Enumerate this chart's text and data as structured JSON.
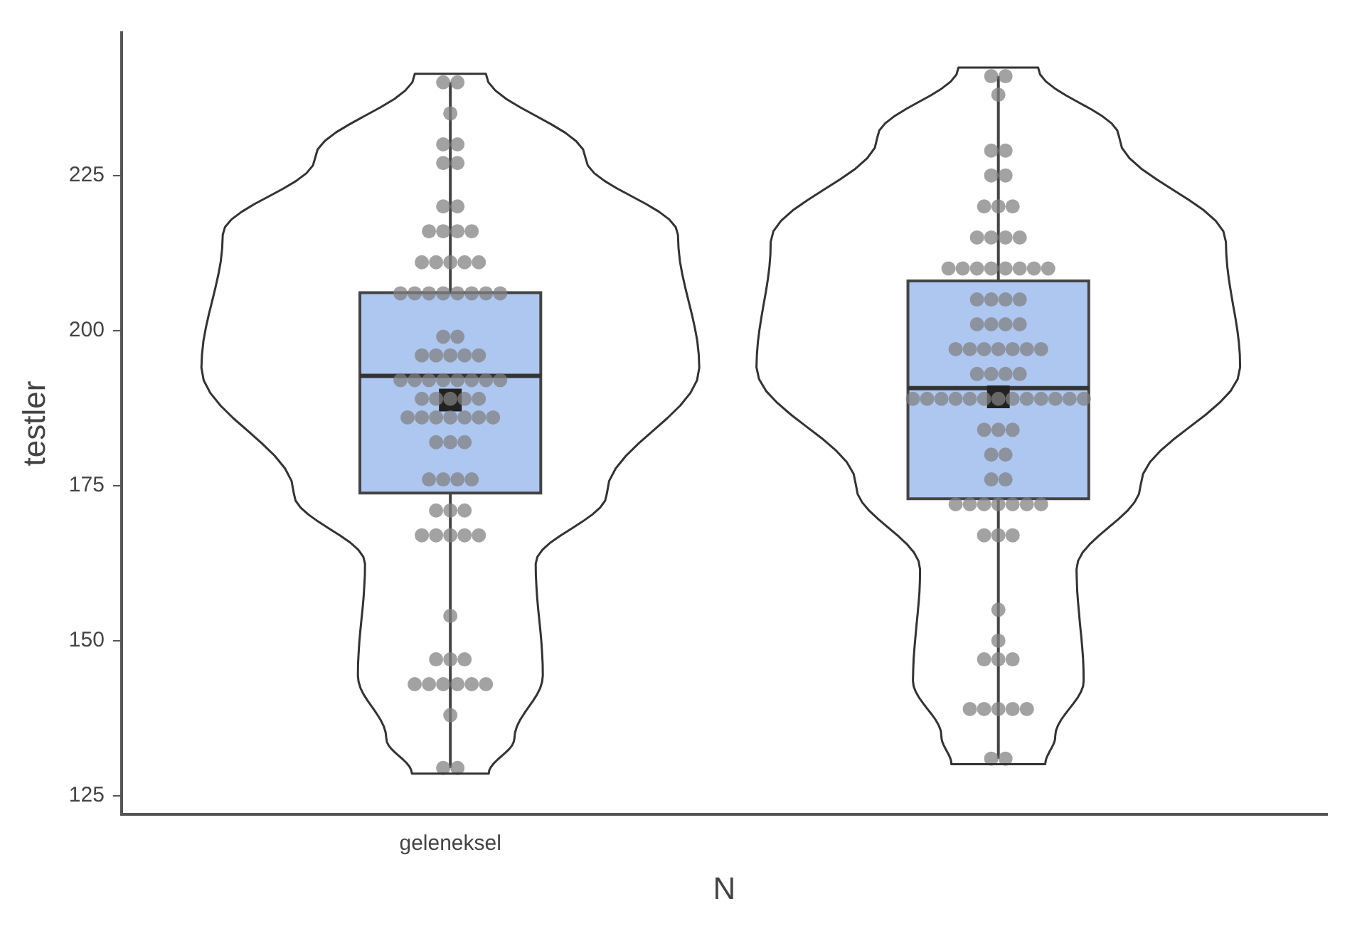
{
  "chart_data": {
    "type": "box",
    "xlabel": "N",
    "ylabel": "testler",
    "categories": [
      "geleneksel",
      null
    ],
    "ylim": [
      122,
      248
    ],
    "yticks": [
      125,
      150,
      175,
      200,
      225
    ],
    "grid": false,
    "legend": false,
    "series": [
      {
        "type": "box",
        "color": "#aec7f0",
        "boxes": [
          {
            "low": 129.5,
            "q1": 173.8,
            "median": 192.7,
            "q3": 206.1,
            "high": 240,
            "mean": 188.8
          },
          {
            "low": 131,
            "q1": 172.9,
            "median": 190.7,
            "q3": 208,
            "high": 241,
            "mean": 189.3
          }
        ]
      },
      {
        "type": "scatter",
        "color": "#808080",
        "marker": "circle",
        "x": [
          "geleneksel",
          "geleneksel",
          "geleneksel",
          "geleneksel",
          "geleneksel",
          "geleneksel",
          "geleneksel",
          "geleneksel",
          "geleneksel",
          "geleneksel",
          "geleneksel",
          "geleneksel",
          "geleneksel",
          "geleneksel",
          "geleneksel",
          "geleneksel",
          "geleneksel",
          "geleneksel",
          "geleneksel",
          "geleneksel",
          "geleneksel",
          "geleneksel",
          "geleneksel",
          "geleneksel",
          "geleneksel",
          "geleneksel",
          "geleneksel",
          "geleneksel",
          "geleneksel",
          "geleneksel",
          "geleneksel",
          "geleneksel",
          "geleneksel",
          "geleneksel",
          "geleneksel",
          "geleneksel",
          "geleneksel",
          "geleneksel",
          "geleneksel",
          "geleneksel",
          "geleneksel",
          "geleneksel",
          "geleneksel",
          "geleneksel",
          "geleneksel",
          "geleneksel",
          "geleneksel",
          "geleneksel",
          "geleneksel",
          "geleneksel",
          "geleneksel",
          "geleneksel",
          "geleneksel",
          "geleneksel",
          "geleneksel",
          "geleneksel",
          "geleneksel",
          "geleneksel",
          "geleneksel",
          "geleneksel",
          "geleneksel",
          "geleneksel",
          "geleneksel",
          "geleneksel",
          "geleneksel",
          "geleneksel",
          "geleneksel",
          "geleneksel",
          "geleneksel",
          "geleneksel",
          "geleneksel",
          "geleneksel",
          "geleneksel",
          "geleneksel",
          "geleneksel",
          "geleneksel",
          "geleneksel",
          "geleneksel",
          "geleneksel",
          "geleneksel",
          "geleneksel"
        ],
        "values": [
          240,
          240,
          235,
          230,
          230,
          227,
          227,
          220,
          220,
          216,
          216,
          216,
          216,
          211,
          211,
          211,
          211,
          211,
          206,
          206,
          206,
          206,
          206,
          206,
          206,
          206,
          199,
          199,
          196,
          196,
          196,
          196,
          196,
          192,
          192,
          192,
          192,
          192,
          192,
          192,
          192,
          189,
          189,
          189,
          189,
          189,
          186,
          186,
          186,
          186,
          186,
          186,
          186,
          182,
          182,
          182,
          176,
          176,
          176,
          176,
          171,
          171,
          171,
          167,
          167,
          167,
          167,
          167,
          154,
          147,
          147,
          147,
          143,
          143,
          143,
          143,
          143,
          143,
          138,
          129.5,
          129.5
        ]
      },
      {
        "type": "scatter",
        "color": "#808080",
        "marker": "circle",
        "x": [
          null,
          null,
          null,
          null,
          null,
          null,
          null,
          null,
          null,
          null,
          null,
          null,
          null,
          null,
          null,
          null,
          null,
          null,
          null,
          null,
          null,
          null,
          null,
          null,
          null,
          null,
          null,
          null,
          null,
          null,
          null,
          null,
          null,
          null,
          null,
          null,
          null,
          null,
          null,
          null,
          null,
          null,
          null,
          null,
          null,
          null,
          null,
          null,
          null,
          null,
          null,
          null,
          null,
          null,
          null,
          null,
          null,
          null,
          null,
          null,
          null,
          null,
          null,
          null,
          null,
          null,
          null,
          null,
          null,
          null,
          null,
          null,
          null,
          null,
          null,
          null,
          null,
          null,
          null,
          null,
          null,
          null,
          null
        ],
        "values": [
          241,
          241,
          238,
          229,
          229,
          225,
          225,
          220,
          220,
          220,
          215,
          215,
          215,
          215,
          210,
          210,
          210,
          210,
          210,
          210,
          210,
          210,
          205,
          205,
          205,
          205,
          201,
          201,
          201,
          201,
          197,
          197,
          197,
          197,
          197,
          197,
          197,
          193,
          193,
          193,
          193,
          189,
          189,
          189,
          189,
          189,
          189,
          189,
          189,
          189,
          189,
          189,
          189,
          189,
          184,
          184,
          184,
          180,
          180,
          176,
          176,
          172,
          172,
          172,
          172,
          172,
          172,
          172,
          167,
          167,
          167,
          155,
          150,
          147,
          147,
          147,
          139,
          139,
          139,
          139,
          139,
          131,
          131
        ]
      }
    ]
  }
}
